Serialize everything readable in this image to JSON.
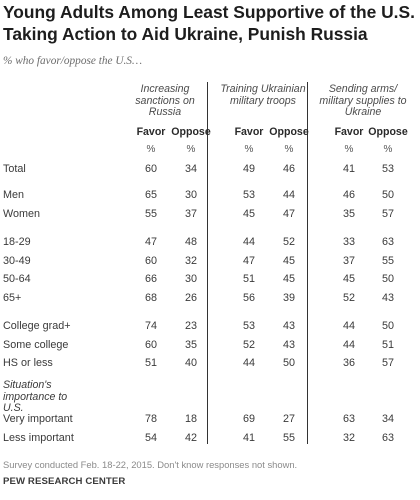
{
  "header": {
    "title": "Young Adults Among Least Supportive of the U.S. Taking Action to Aid Ukraine, Punish Russia",
    "subtitle": "% who favor/oppose the U.S…"
  },
  "chart_data": {
    "type": "table",
    "groups": [
      {
        "label": "Increasing sanctions on Russia",
        "columns": [
          "Favor",
          "Oppose"
        ]
      },
      {
        "label": "Training Ukrainian military troops",
        "columns": [
          "Favor",
          "Oppose"
        ]
      },
      {
        "label": "Sending arms/ military supplies to Ukraine",
        "columns": [
          "Favor",
          "Oppose"
        ]
      }
    ],
    "unit_label": "%",
    "section_label": "Situation's importance to U.S.",
    "rows": [
      {
        "label": "Total",
        "values": [
          "60",
          "34",
          "49",
          "46",
          "41",
          "53"
        ]
      },
      {
        "label": "Men",
        "values": [
          "65",
          "30",
          "53",
          "44",
          "46",
          "50"
        ]
      },
      {
        "label": "Women",
        "values": [
          "55",
          "37",
          "45",
          "47",
          "35",
          "57"
        ]
      },
      {
        "label": "18-29",
        "values": [
          "47",
          "48",
          "44",
          "52",
          "33",
          "63"
        ]
      },
      {
        "label": "30-49",
        "values": [
          "60",
          "32",
          "47",
          "45",
          "37",
          "55"
        ]
      },
      {
        "label": "50-64",
        "values": [
          "66",
          "30",
          "51",
          "45",
          "45",
          "50"
        ]
      },
      {
        "label": "65+",
        "values": [
          "68",
          "26",
          "56",
          "39",
          "52",
          "43"
        ]
      },
      {
        "label": "College grad+",
        "values": [
          "74",
          "23",
          "53",
          "43",
          "44",
          "50"
        ]
      },
      {
        "label": "Some college",
        "values": [
          "60",
          "35",
          "52",
          "43",
          "44",
          "51"
        ]
      },
      {
        "label": "HS or less",
        "values": [
          "51",
          "40",
          "44",
          "50",
          "36",
          "57"
        ]
      },
      {
        "label": "Very important",
        "values": [
          "78",
          "18",
          "69",
          "27",
          "63",
          "34"
        ]
      },
      {
        "label": "Less important",
        "values": [
          "54",
          "42",
          "41",
          "55",
          "32",
          "63"
        ]
      }
    ]
  },
  "footer": {
    "note": "Survey conducted Feb. 18-22, 2015. Don't know responses not shown.",
    "source": "PEW RESEARCH CENTER"
  }
}
